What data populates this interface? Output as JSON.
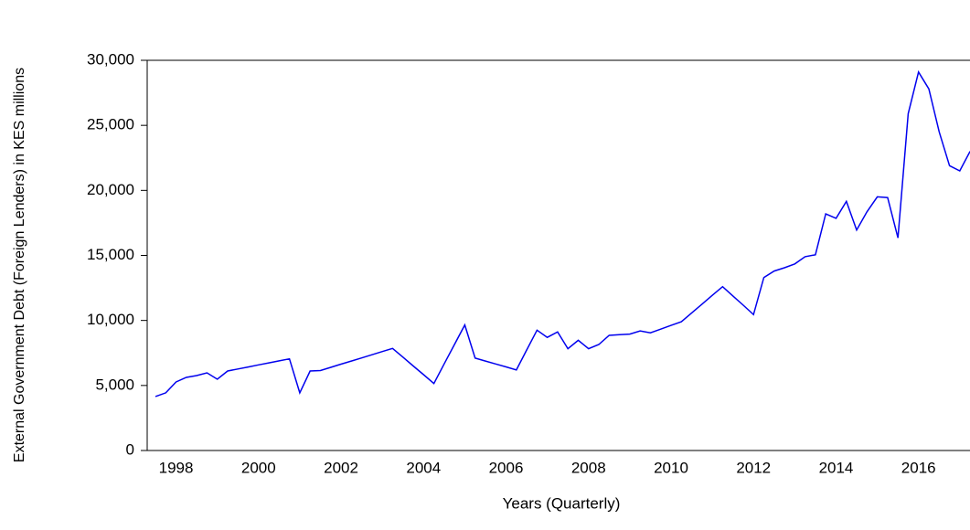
{
  "chart_data": {
    "type": "line",
    "x_label": "Years (Quarterly)",
    "y_label": "External Government Debt (Foreign Lenders) in  KES millions",
    "categories": [
      null,
      null,
      "1998",
      null,
      null,
      null,
      null,
      null,
      null,
      null,
      "2000",
      null,
      null,
      null,
      null,
      null,
      null,
      null,
      "2002",
      null,
      null,
      null,
      null,
      null,
      null,
      null,
      "2004",
      null,
      null,
      null,
      null,
      null,
      null,
      null,
      "2006",
      null,
      null,
      null,
      null,
      null,
      null,
      null,
      "2008",
      null,
      null,
      null,
      null,
      null,
      null,
      null,
      "2010",
      null,
      null,
      null,
      null,
      null,
      null,
      null,
      "2012",
      null,
      null,
      null,
      null,
      null,
      null,
      null,
      "2014",
      null,
      null,
      null,
      null,
      null,
      null,
      null,
      "2016",
      null,
      null,
      null,
      null,
      null
    ],
    "series": [
      {
        "color": "#0000ee",
        "values": [
          4150,
          4430,
          5270,
          5620,
          5760,
          5970,
          5480,
          6110,
          6270,
          6420,
          6580,
          6740,
          6890,
          7050,
          4430,
          6110,
          6150,
          6390,
          6640,
          6880,
          7120,
          7360,
          7610,
          7850,
          7180,
          6500,
          5830,
          5150,
          6650,
          8150,
          9650,
          7100,
          6880,
          6650,
          6430,
          6200,
          7730,
          9250,
          8700,
          9120,
          7830,
          8470,
          7830,
          8150,
          8850,
          8900,
          8950,
          9200,
          9050,
          9330,
          9620,
          9900,
          10580,
          11250,
          11930,
          12600,
          11880,
          11170,
          10450,
          13300,
          13800,
          14050,
          14350,
          14900,
          15050,
          18200,
          17850,
          19150,
          16950,
          18350,
          19500,
          19450,
          16350,
          25900,
          29100,
          27800,
          24500,
          21900,
          21500,
          23000
        ]
      }
    ],
    "ylim": [
      0,
      30000
    ],
    "yticks": [
      0,
      {
        "value": 5000,
        "label": "5,000"
      },
      {
        "value": 10000,
        "label": "10,000"
      },
      {
        "value": 15000,
        "label": "15,000"
      },
      {
        "value": 20000,
        "label": "20,000"
      },
      {
        "value": 25000,
        "label": "25,000"
      },
      {
        "value": 30000,
        "label": "30,000"
      }
    ]
  }
}
